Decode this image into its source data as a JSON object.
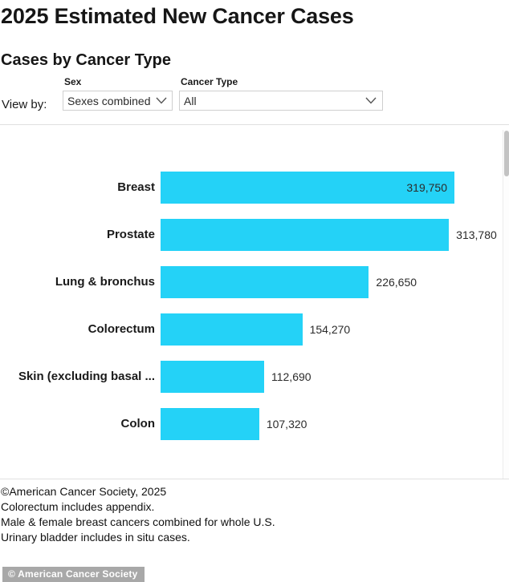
{
  "header": {
    "title": "2025 Estimated New Cancer Cases",
    "subtitle": "Cases by Cancer Type"
  },
  "controls": {
    "view_by_label": "View by:",
    "sex": {
      "label": "Sex",
      "value": "Sexes combined"
    },
    "cancer_type": {
      "label": "Cancer Type",
      "value": "All"
    }
  },
  "chart_data": {
    "type": "bar",
    "orientation": "horizontal",
    "title": "Cases by Cancer Type",
    "categories": [
      "Breast",
      "Prostate",
      "Lung & bronchus",
      "Colorectum",
      "Skin (excluding basal ...",
      "Colon"
    ],
    "values": [
      319750,
      313780,
      226650,
      154270,
      112690,
      107320
    ],
    "value_labels": [
      "319,750",
      "313,780",
      "226,650",
      "154,270",
      "112,690",
      "107,320"
    ],
    "value_label_placement": [
      "inside",
      "outside",
      "outside",
      "outside",
      "outside",
      "outside"
    ],
    "bar_color": "#24d2f7",
    "xlim": [
      0,
      319750
    ],
    "grid": false,
    "legend": "none",
    "scrollable": true
  },
  "footer": {
    "lines": [
      "©American Cancer Society, 2025",
      "Colorectum includes appendix.",
      "Male & female breast cancers combined for whole U.S.",
      "Urinary bladder includes in situ cases."
    ]
  },
  "watermark": "© American Cancer Society"
}
